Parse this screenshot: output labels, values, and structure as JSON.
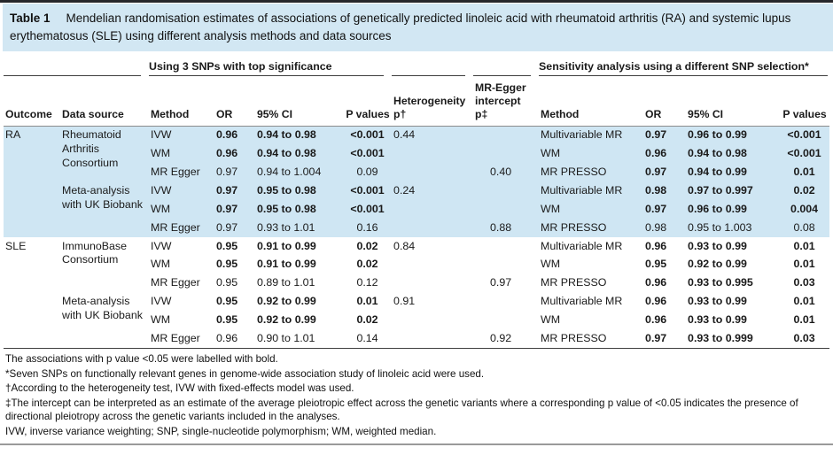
{
  "colors": {
    "caption_band_bg": "#d2e7f3",
    "row_highlight_bg": "#cfe6f3",
    "top_rule": "#26272b",
    "bottom_rule": "#9a9a9a"
  },
  "table": {
    "label": "Table 1",
    "caption": "Mendelian randomisation estimates of associations of genetically predicted linoleic acid with rheumatoid arthritis (RA) and systemic lupus erythematosus (SLE) using different analysis methods and data sources",
    "group_primary": "Using 3 SNPs with top significance",
    "group_sensitivity": "Sensitivity analysis using a different SNP selection*",
    "columns": [
      "Outcome",
      "Data source",
      "Method",
      "OR",
      "95% CI",
      "P values",
      "Heterogeneity p†",
      "MR-Egger intercept p‡",
      "Method",
      "OR",
      "95% CI",
      "P values"
    ],
    "rows": [
      {
        "g": "blue",
        "cells": [
          {
            "t": "RA",
            "rs": 6
          },
          {
            "t": "Rheumatoid Arthritis Consortium",
            "rs": 3
          },
          {
            "t": "IVW"
          },
          {
            "t": "0.96",
            "b": 1
          },
          {
            "t": "0.94 to 0.98",
            "b": 1
          },
          {
            "t": "<0.001",
            "b": 1
          },
          {
            "t": "0.44"
          },
          {
            "t": ""
          },
          {
            "t": "Multivariable MR"
          },
          {
            "t": "0.97",
            "b": 1
          },
          {
            "t": "0.96 to 0.99",
            "b": 1
          },
          {
            "t": "<0.001",
            "b": 1
          }
        ]
      },
      {
        "g": "blue",
        "cells": [
          null,
          null,
          {
            "t": "WM"
          },
          {
            "t": "0.96",
            "b": 1
          },
          {
            "t": "0.94 to 0.98",
            "b": 1
          },
          {
            "t": "<0.001",
            "b": 1
          },
          {
            "t": ""
          },
          {
            "t": ""
          },
          {
            "t": "WM"
          },
          {
            "t": "0.96",
            "b": 1
          },
          {
            "t": "0.94 to 0.98",
            "b": 1
          },
          {
            "t": "<0.001",
            "b": 1
          }
        ]
      },
      {
        "g": "blue",
        "cells": [
          null,
          null,
          {
            "t": "MR Egger"
          },
          {
            "t": "0.97"
          },
          {
            "t": "0.94 to 1.004"
          },
          {
            "t": "0.09"
          },
          {
            "t": ""
          },
          {
            "t": "0.40"
          },
          {
            "t": "MR PRESSO"
          },
          {
            "t": "0.97",
            "b": 1
          },
          {
            "t": "0.94 to 0.99",
            "b": 1
          },
          {
            "t": "0.01",
            "b": 1
          }
        ]
      },
      {
        "g": "blue",
        "cells": [
          null,
          {
            "t": "Meta-analysis with UK Biobank",
            "rs": 3
          },
          {
            "t": "IVW"
          },
          {
            "t": "0.97",
            "b": 1
          },
          {
            "t": "0.95 to 0.98",
            "b": 1
          },
          {
            "t": "<0.001",
            "b": 1
          },
          {
            "t": "0.24"
          },
          {
            "t": ""
          },
          {
            "t": "Multivariable MR"
          },
          {
            "t": "0.98",
            "b": 1
          },
          {
            "t": "0.97 to 0.997",
            "b": 1
          },
          {
            "t": "0.02",
            "b": 1
          }
        ]
      },
      {
        "g": "blue",
        "cells": [
          null,
          null,
          {
            "t": "WM"
          },
          {
            "t": "0.97",
            "b": 1
          },
          {
            "t": "0.95 to 0.98",
            "b": 1
          },
          {
            "t": "<0.001",
            "b": 1
          },
          {
            "t": ""
          },
          {
            "t": ""
          },
          {
            "t": "WM"
          },
          {
            "t": "0.97",
            "b": 1
          },
          {
            "t": "0.96 to 0.99",
            "b": 1
          },
          {
            "t": "0.004",
            "b": 1
          }
        ]
      },
      {
        "g": "blue",
        "cells": [
          null,
          null,
          {
            "t": "MR Egger"
          },
          {
            "t": "0.97"
          },
          {
            "t": "0.93 to 1.01"
          },
          {
            "t": "0.16"
          },
          {
            "t": ""
          },
          {
            "t": "0.88"
          },
          {
            "t": "MR PRESSO"
          },
          {
            "t": "0.98"
          },
          {
            "t": "0.95 to 1.003"
          },
          {
            "t": "0.08"
          }
        ]
      },
      {
        "g": "white",
        "cells": [
          {
            "t": "SLE",
            "rs": 6
          },
          {
            "t": "ImmunoBase Consortium",
            "rs": 3
          },
          {
            "t": "IVW"
          },
          {
            "t": "0.95",
            "b": 1
          },
          {
            "t": "0.91 to 0.99",
            "b": 1
          },
          {
            "t": "0.02",
            "b": 1
          },
          {
            "t": "0.84"
          },
          {
            "t": ""
          },
          {
            "t": "Multivariable MR"
          },
          {
            "t": "0.96",
            "b": 1
          },
          {
            "t": "0.93 to 0.99",
            "b": 1
          },
          {
            "t": "0.01",
            "b": 1
          }
        ]
      },
      {
        "g": "white",
        "cells": [
          null,
          null,
          {
            "t": "WM"
          },
          {
            "t": "0.95",
            "b": 1
          },
          {
            "t": "0.91 to 0.99",
            "b": 1
          },
          {
            "t": "0.02",
            "b": 1
          },
          {
            "t": ""
          },
          {
            "t": ""
          },
          {
            "t": "WM"
          },
          {
            "t": "0.95",
            "b": 1
          },
          {
            "t": "0.92 to 0.99",
            "b": 1
          },
          {
            "t": "0.01",
            "b": 1
          }
        ]
      },
      {
        "g": "white",
        "cells": [
          null,
          null,
          {
            "t": "MR Egger"
          },
          {
            "t": "0.95"
          },
          {
            "t": "0.89 to 1.01"
          },
          {
            "t": "0.12"
          },
          {
            "t": ""
          },
          {
            "t": "0.97"
          },
          {
            "t": "MR PRESSO"
          },
          {
            "t": "0.96",
            "b": 1
          },
          {
            "t": "0.93 to 0.995",
            "b": 1
          },
          {
            "t": "0.03",
            "b": 1
          }
        ]
      },
      {
        "g": "white",
        "cells": [
          null,
          {
            "t": "Meta-analysis with UK Biobank",
            "rs": 3
          },
          {
            "t": "IVW"
          },
          {
            "t": "0.95",
            "b": 1
          },
          {
            "t": "0.92 to 0.99",
            "b": 1
          },
          {
            "t": "0.01",
            "b": 1
          },
          {
            "t": "0.91"
          },
          {
            "t": ""
          },
          {
            "t": "Multivariable MR"
          },
          {
            "t": "0.96",
            "b": 1
          },
          {
            "t": "0.93 to 0.99",
            "b": 1
          },
          {
            "t": "0.01",
            "b": 1
          }
        ]
      },
      {
        "g": "white",
        "cells": [
          null,
          null,
          {
            "t": "WM"
          },
          {
            "t": "0.95",
            "b": 1
          },
          {
            "t": "0.92 to 0.99",
            "b": 1
          },
          {
            "t": "0.02",
            "b": 1
          },
          {
            "t": ""
          },
          {
            "t": ""
          },
          {
            "t": "WM"
          },
          {
            "t": "0.96",
            "b": 1
          },
          {
            "t": "0.93 to 0.99",
            "b": 1
          },
          {
            "t": "0.01",
            "b": 1
          }
        ]
      },
      {
        "g": "white",
        "cells": [
          null,
          null,
          {
            "t": "MR Egger"
          },
          {
            "t": "0.96"
          },
          {
            "t": "0.90 to 1.01"
          },
          {
            "t": "0.14"
          },
          {
            "t": ""
          },
          {
            "t": "0.92"
          },
          {
            "t": "MR PRESSO"
          },
          {
            "t": "0.97",
            "b": 1
          },
          {
            "t": "0.93 to 0.999",
            "b": 1
          },
          {
            "t": "0.03",
            "b": 1
          }
        ]
      }
    ]
  },
  "footnotes": [
    "The associations with p value <0.05 were labelled with bold.",
    "*Seven SNPs on functionally relevant genes in genome-wide association study of linoleic acid were used.",
    "†According to the heterogeneity test, IVW with fixed-effects model was used.",
    "‡The intercept can be interpreted as an estimate of the average pleiotropic effect across the genetic variants where a corresponding p value of <0.05 indicates the presence of directional pleiotropy across the genetic variants included in the analyses.",
    "IVW, inverse variance weighting; SNP, single-nucleotide polymorphism; WM, weighted median."
  ]
}
